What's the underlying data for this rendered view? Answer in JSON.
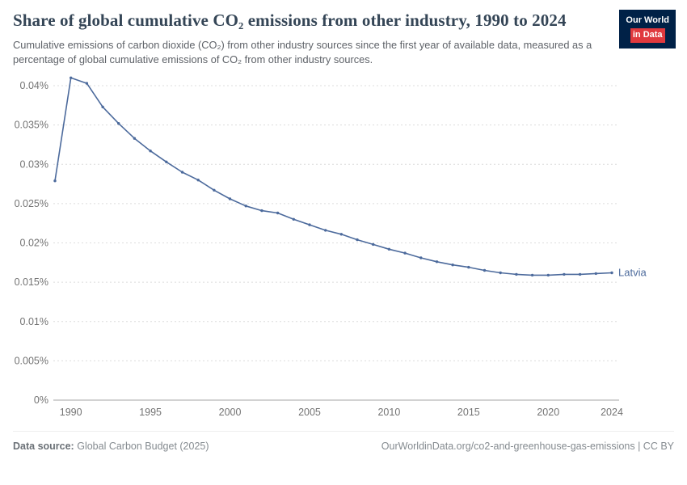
{
  "header": {
    "title": "Share of global cumulative CO₂ emissions from other industry, 1990 to 2024",
    "subtitle": "Cumulative emissions of carbon dioxide (CO₂) from other industry sources since the first year of available data, measured as a percentage of global cumulative emissions of CO₂ from other industry sources.",
    "logo": {
      "line1": "Our World",
      "line2": "in Data"
    }
  },
  "chart_data": {
    "type": "line",
    "title": "Share of global cumulative CO₂ emissions from other industry, 1990 to 2024",
    "xlabel": "",
    "ylabel": "",
    "grid": "horizontal-dashed",
    "legend_position": "end-of-line-label",
    "xlim": [
      1989,
      2024
    ],
    "ylim": [
      0,
      0.04
    ],
    "x_ticks": [
      1990,
      1995,
      2000,
      2005,
      2010,
      2015,
      2020,
      2024
    ],
    "y_ticks": [
      0,
      0.005,
      0.01,
      0.015,
      0.02,
      0.025,
      0.03,
      0.035,
      0.04
    ],
    "y_tick_labels": [
      "0%",
      "0.005%",
      "0.01%",
      "0.015%",
      "0.02%",
      "0.025%",
      "0.03%",
      "0.035%",
      "0.04%"
    ],
    "series": [
      {
        "name": "Latvia",
        "color": "#4c6a9c",
        "x": [
          1989,
          1990,
          1991,
          1992,
          1993,
          1994,
          1995,
          1996,
          1997,
          1998,
          1999,
          2000,
          2001,
          2002,
          2003,
          2004,
          2005,
          2006,
          2007,
          2008,
          2009,
          2010,
          2011,
          2012,
          2013,
          2014,
          2015,
          2016,
          2017,
          2018,
          2019,
          2020,
          2021,
          2022,
          2023,
          2024
        ],
        "values": [
          0.0279,
          0.041,
          0.0403,
          0.0373,
          0.0352,
          0.0333,
          0.0317,
          0.0303,
          0.029,
          0.028,
          0.0267,
          0.0256,
          0.0247,
          0.0241,
          0.0238,
          0.023,
          0.0223,
          0.0216,
          0.0211,
          0.0204,
          0.0198,
          0.0192,
          0.0187,
          0.0181,
          0.0176,
          0.0172,
          0.0169,
          0.0165,
          0.0162,
          0.016,
          0.0159,
          0.0159,
          0.016,
          0.016,
          0.0161,
          0.0162
        ]
      }
    ]
  },
  "footer": {
    "source_label": "Data source:",
    "source_value": "Global Carbon Budget (2025)",
    "right_text": "OurWorldinData.org/co2-and-greenhouse-gas-emissions | CC BY"
  }
}
